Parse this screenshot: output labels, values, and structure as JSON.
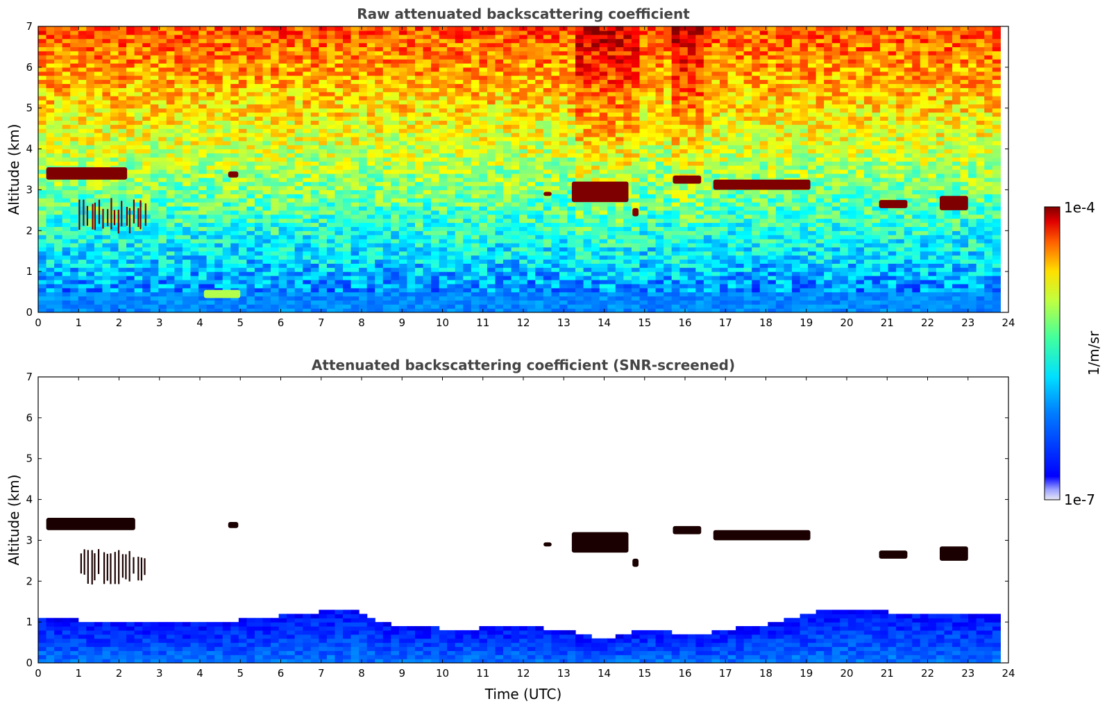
{
  "chart_data": [
    {
      "type": "heatmap",
      "title": "Raw attenuated backscattering coefficient",
      "xlabel": "",
      "ylabel": "Altitude (km)",
      "xlim": [
        0,
        24
      ],
      "ylim": [
        0,
        7
      ],
      "x_ticks": [
        "0",
        "1",
        "2",
        "3",
        "4",
        "5",
        "6",
        "7",
        "8",
        "9",
        "10",
        "11",
        "12",
        "13",
        "14",
        "15",
        "16",
        "17",
        "18",
        "19",
        "20",
        "21",
        "22",
        "23",
        "24"
      ],
      "y_ticks": [
        "0",
        "1",
        "2",
        "3",
        "4",
        "5",
        "6",
        "7"
      ],
      "data_x_extent": [
        0,
        23.8
      ],
      "screened": false,
      "features": [
        {
          "kind": "cloud",
          "x": [
            0.2,
            2.2
          ],
          "y": [
            3.25,
            3.55
          ],
          "strength": "high"
        },
        {
          "kind": "cloud",
          "x": [
            4.7,
            4.95
          ],
          "y": [
            3.3,
            3.45
          ],
          "strength": "high"
        },
        {
          "kind": "cloud",
          "x": [
            12.5,
            12.7
          ],
          "y": [
            2.85,
            2.95
          ],
          "strength": "high"
        },
        {
          "kind": "cloud",
          "x": [
            13.2,
            14.6
          ],
          "y": [
            2.7,
            3.2
          ],
          "strength": "high"
        },
        {
          "kind": "cloud",
          "x": [
            14.7,
            14.85
          ],
          "y": [
            2.35,
            2.55
          ],
          "strength": "high"
        },
        {
          "kind": "cloud",
          "x": [
            15.7,
            16.4
          ],
          "y": [
            3.15,
            3.35
          ],
          "strength": "high"
        },
        {
          "kind": "cloud",
          "x": [
            16.7,
            19.1
          ],
          "y": [
            3.0,
            3.25
          ],
          "strength": "high"
        },
        {
          "kind": "cloud",
          "x": [
            20.8,
            21.5
          ],
          "y": [
            2.55,
            2.75
          ],
          "strength": "high"
        },
        {
          "kind": "cloud",
          "x": [
            22.3,
            23.0
          ],
          "y": [
            2.5,
            2.85
          ],
          "strength": "high"
        },
        {
          "kind": "virga",
          "x": [
            1.0,
            2.7
          ],
          "y": [
            1.9,
            2.8
          ],
          "strength": "high"
        },
        {
          "kind": "aerosol",
          "x": [
            4.1,
            5.0
          ],
          "y": [
            0.35,
            0.55
          ],
          "strength": "medium"
        }
      ]
    },
    {
      "type": "heatmap",
      "title": "Attenuated backscattering coefficient (SNR-screened)",
      "xlabel": "Time (UTC)",
      "ylabel": "Altitude (km)",
      "xlim": [
        0,
        24
      ],
      "ylim": [
        0,
        7
      ],
      "x_ticks": [
        "0",
        "1",
        "2",
        "3",
        "4",
        "5",
        "6",
        "7",
        "8",
        "9",
        "10",
        "11",
        "12",
        "13",
        "14",
        "15",
        "16",
        "17",
        "18",
        "19",
        "20",
        "21",
        "22",
        "23",
        "24"
      ],
      "y_ticks": [
        "0",
        "1",
        "2",
        "3",
        "4",
        "5",
        "6",
        "7"
      ],
      "data_x_extent": [
        0,
        23.8
      ],
      "screened": true,
      "boundary_layer_top_km": [
        [
          0,
          1.05
        ],
        [
          1,
          1.0
        ],
        [
          2,
          0.95
        ],
        [
          3,
          0.9
        ],
        [
          4,
          0.9
        ],
        [
          5,
          1.0
        ],
        [
          6,
          1.1
        ],
        [
          7,
          1.2
        ],
        [
          7.8,
          1.3
        ],
        [
          8.5,
          0.95
        ],
        [
          9,
          0.85
        ],
        [
          10,
          0.8
        ],
        [
          11,
          0.8
        ],
        [
          12,
          0.85
        ],
        [
          13,
          0.75
        ],
        [
          13.5,
          0.65
        ],
        [
          14,
          0.55
        ],
        [
          15,
          0.75
        ],
        [
          15.5,
          0.8
        ],
        [
          16,
          0.6
        ],
        [
          17,
          0.75
        ],
        [
          18,
          0.9
        ],
        [
          19,
          1.15
        ],
        [
          20,
          1.3
        ],
        [
          21,
          1.2
        ],
        [
          22,
          1.2
        ],
        [
          23,
          1.15
        ],
        [
          23.8,
          1.1
        ]
      ],
      "features": [
        {
          "kind": "cloud",
          "x": [
            0.2,
            2.4
          ],
          "y": [
            3.25,
            3.55
          ],
          "strength": "saturated"
        },
        {
          "kind": "cloud",
          "x": [
            4.7,
            4.95
          ],
          "y": [
            3.3,
            3.45
          ],
          "strength": "saturated"
        },
        {
          "kind": "cloud",
          "x": [
            12.5,
            12.7
          ],
          "y": [
            2.85,
            2.95
          ],
          "strength": "saturated"
        },
        {
          "kind": "cloud",
          "x": [
            13.2,
            14.6
          ],
          "y": [
            2.7,
            3.2
          ],
          "strength": "saturated"
        },
        {
          "kind": "cloud",
          "x": [
            14.7,
            14.85
          ],
          "y": [
            2.35,
            2.55
          ],
          "strength": "saturated"
        },
        {
          "kind": "cloud",
          "x": [
            15.7,
            16.4
          ],
          "y": [
            3.15,
            3.35
          ],
          "strength": "saturated"
        },
        {
          "kind": "cloud",
          "x": [
            16.7,
            19.1
          ],
          "y": [
            3.0,
            3.25
          ],
          "strength": "saturated"
        },
        {
          "kind": "cloud",
          "x": [
            20.8,
            21.5
          ],
          "y": [
            2.55,
            2.75
          ],
          "strength": "saturated"
        },
        {
          "kind": "cloud",
          "x": [
            22.3,
            23.0
          ],
          "y": [
            2.5,
            2.85
          ],
          "strength": "saturated"
        },
        {
          "kind": "virga",
          "x": [
            1.0,
            2.7
          ],
          "y": [
            1.9,
            2.8
          ],
          "strength": "saturated"
        }
      ]
    }
  ],
  "colorbar": {
    "label": "1/m/sr",
    "max_label": "1e-4",
    "min_label": "1e-7",
    "scale": "log",
    "colormap": "jet",
    "range": [
      1e-07,
      0.0001
    ]
  },
  "colors": {
    "title": "#444444",
    "cloud": "#7f0000",
    "saturated": "#1a0000"
  }
}
